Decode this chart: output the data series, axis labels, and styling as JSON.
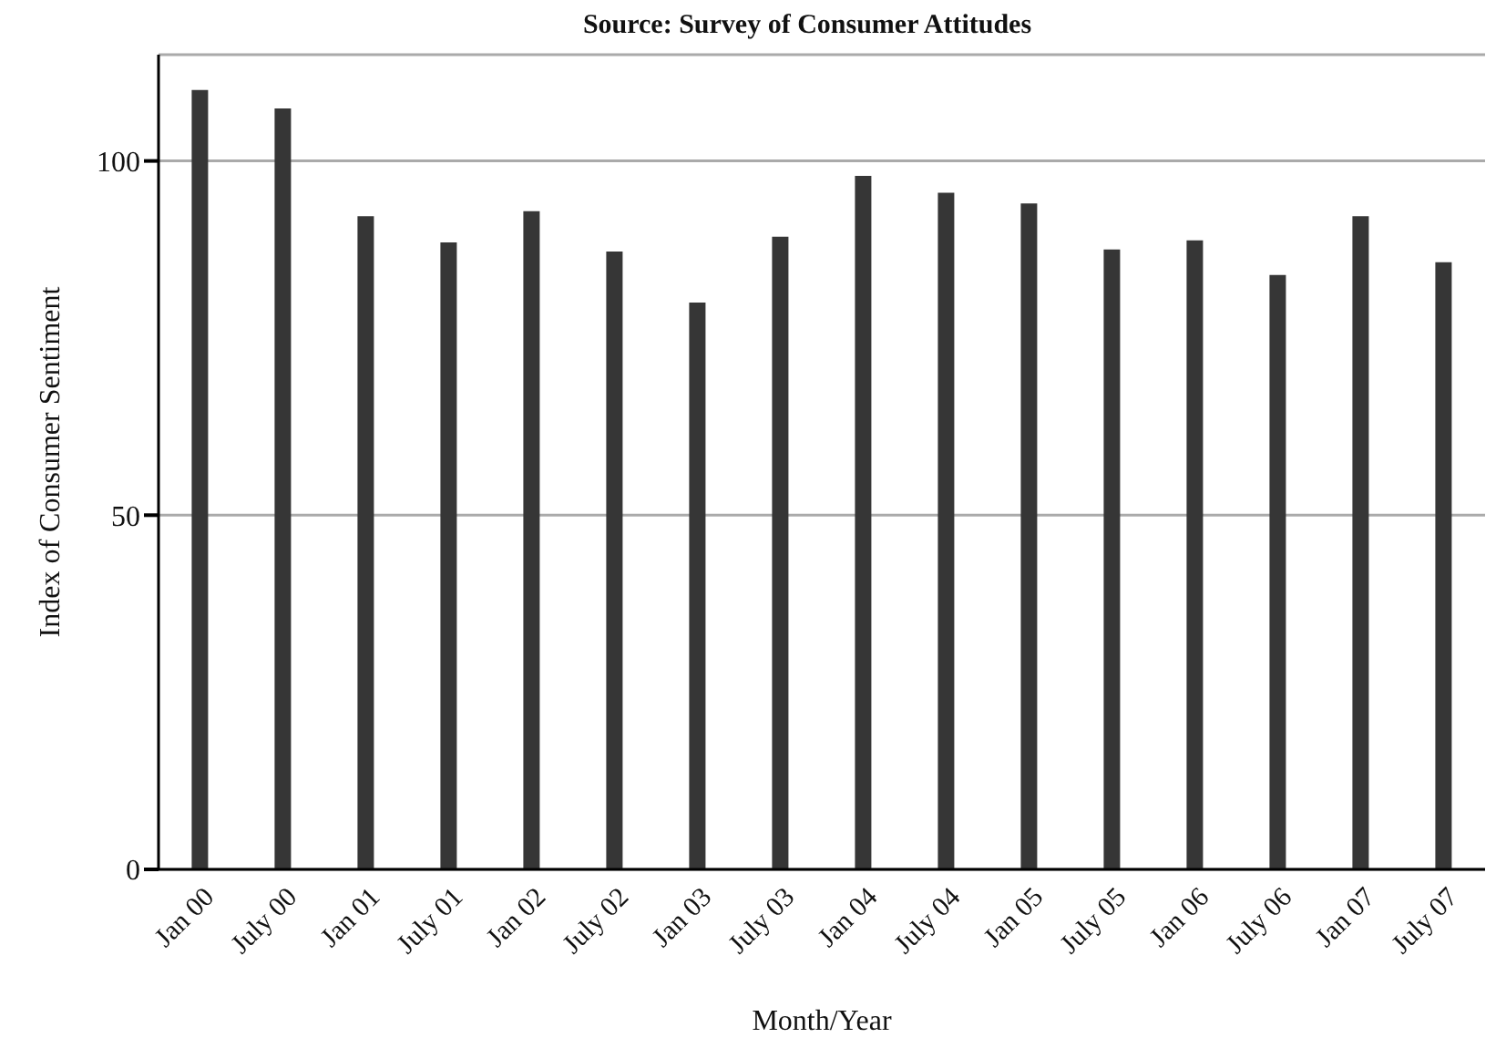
{
  "chart_data": {
    "type": "bar",
    "title": "Source: Survey of Consumer Attitudes",
    "xlabel": "Month/Year",
    "ylabel": "Index of Consumer Sentiment",
    "categories": [
      "Jan 00",
      "July 00",
      "Jan 01",
      "July 01",
      "Jan 02",
      "July 02",
      "Jan 03",
      "July 03",
      "Jan 04",
      "July 04",
      "Jan 05",
      "July 05",
      "Jan 06",
      "July 06",
      "Jan 07",
      "July 07"
    ],
    "values": [
      110.0,
      107.4,
      92.2,
      88.5,
      92.9,
      87.2,
      80.0,
      89.3,
      97.9,
      95.5,
      94.0,
      87.5,
      88.8,
      83.9,
      92.2,
      85.7
    ],
    "color": "#363636",
    "ylim": [
      0,
      115
    ],
    "yticks": [
      0,
      50,
      100
    ],
    "grid": "y",
    "legend": false
  }
}
